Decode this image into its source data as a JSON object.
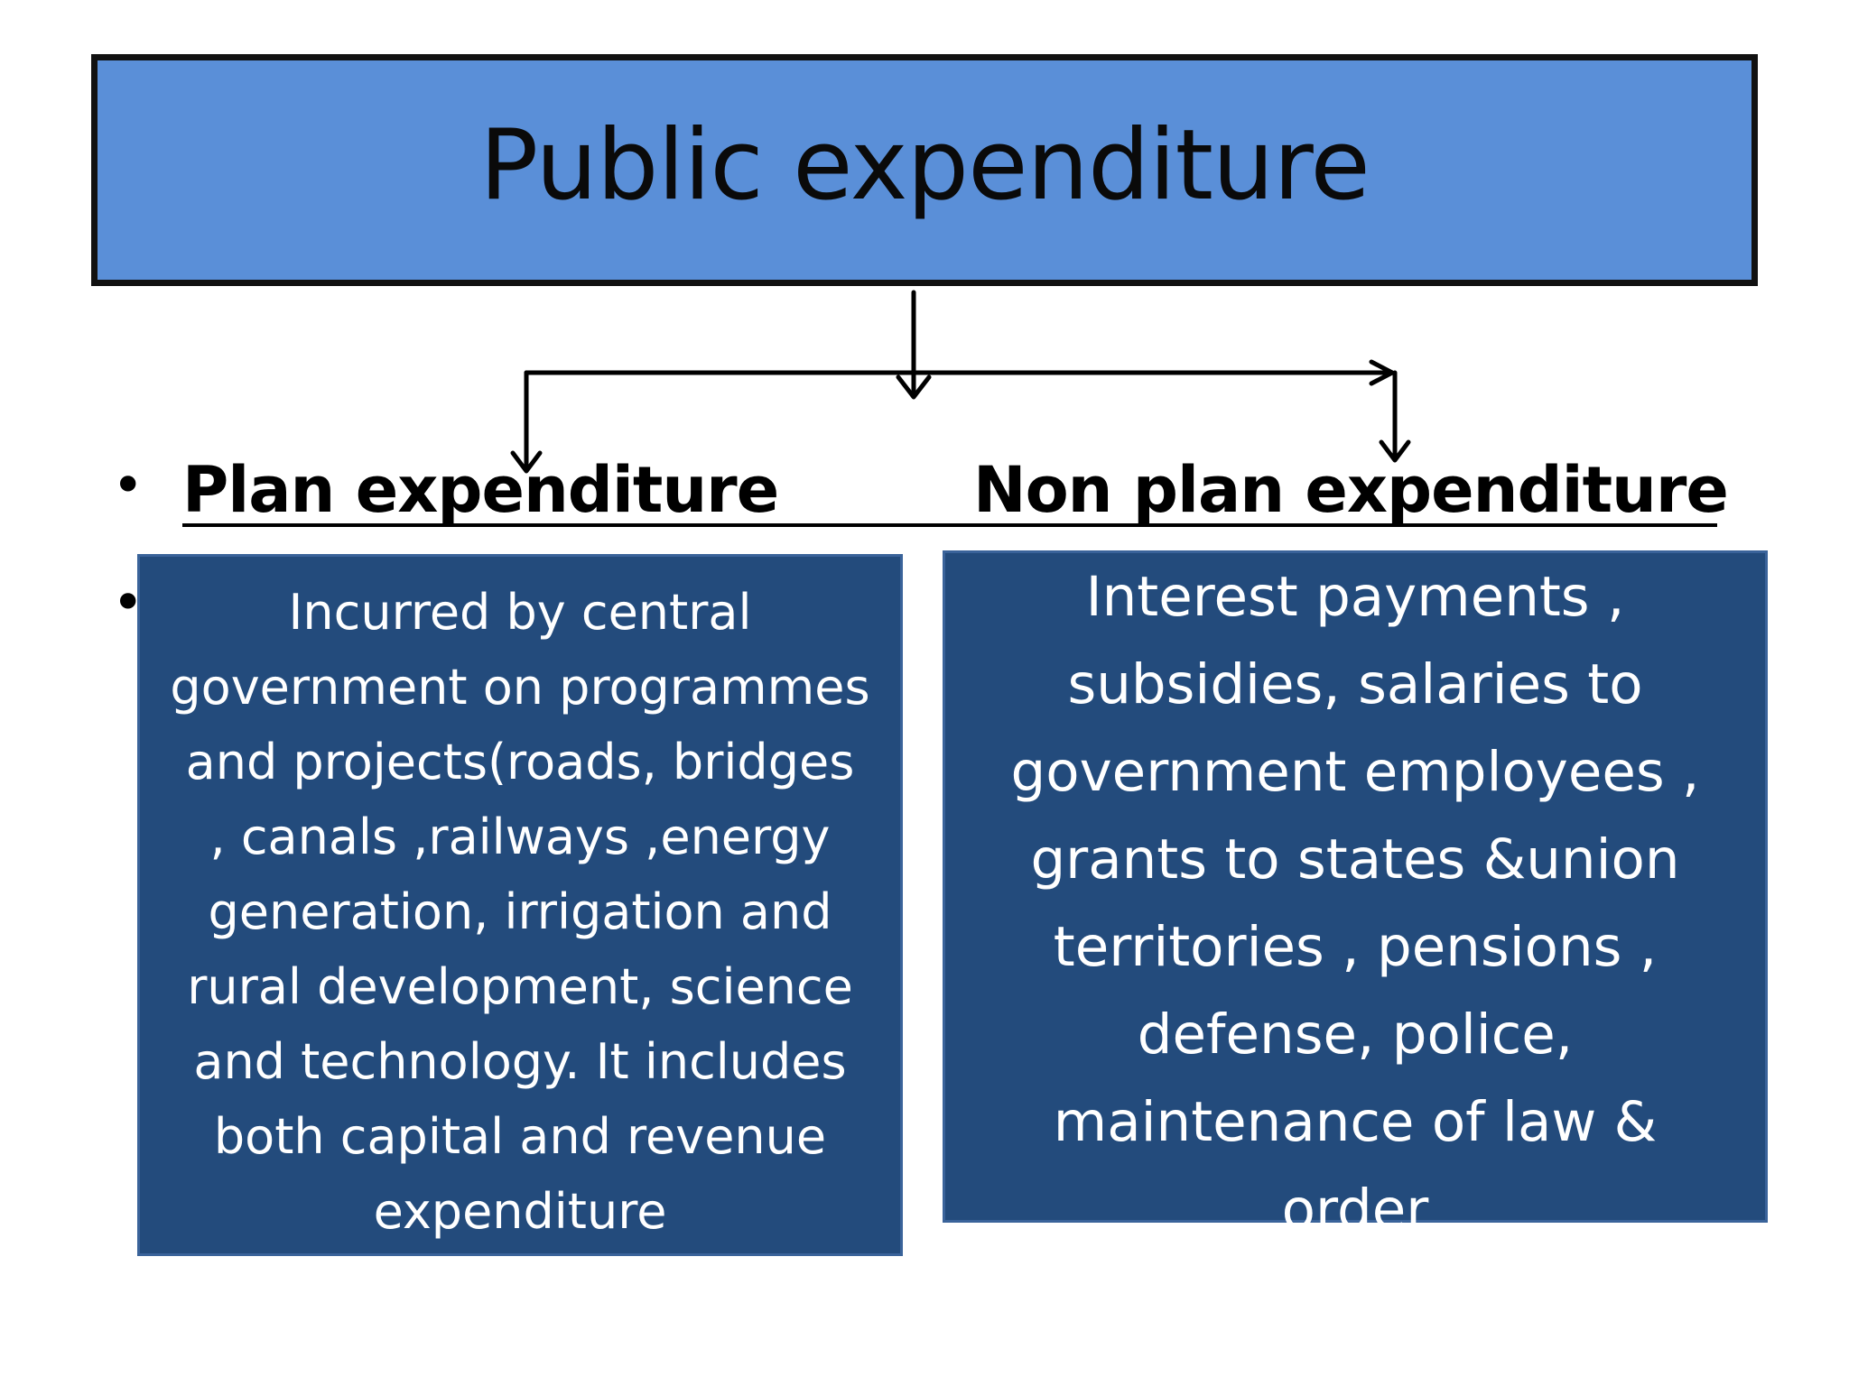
{
  "title": "Public expenditure",
  "branches": [
    {
      "heading": "Plan expenditure",
      "description": "Incurred by central\ngovernment on programmes\nand  projects(roads, bridges\n, canals ,railways ,energy\ngeneration,   irrigation and\nrural development,  science\nand technology. It includes\nboth capital and revenue\nexpenditure"
    },
    {
      "heading": "Non plan expenditure",
      "description": "Interest payments ,\nsubsidies, salaries to\ngovernment  employees ,\ngrants to states &union\nterritories , pensions ,\ndefense, police,\nmaintenance of law &\norder"
    }
  ],
  "bullet_glyph": "•",
  "colors": {
    "title_fill": "#5a8fd8",
    "title_border": "#111111",
    "box_fill": "#234b7c",
    "box_text": "#ffffff"
  }
}
